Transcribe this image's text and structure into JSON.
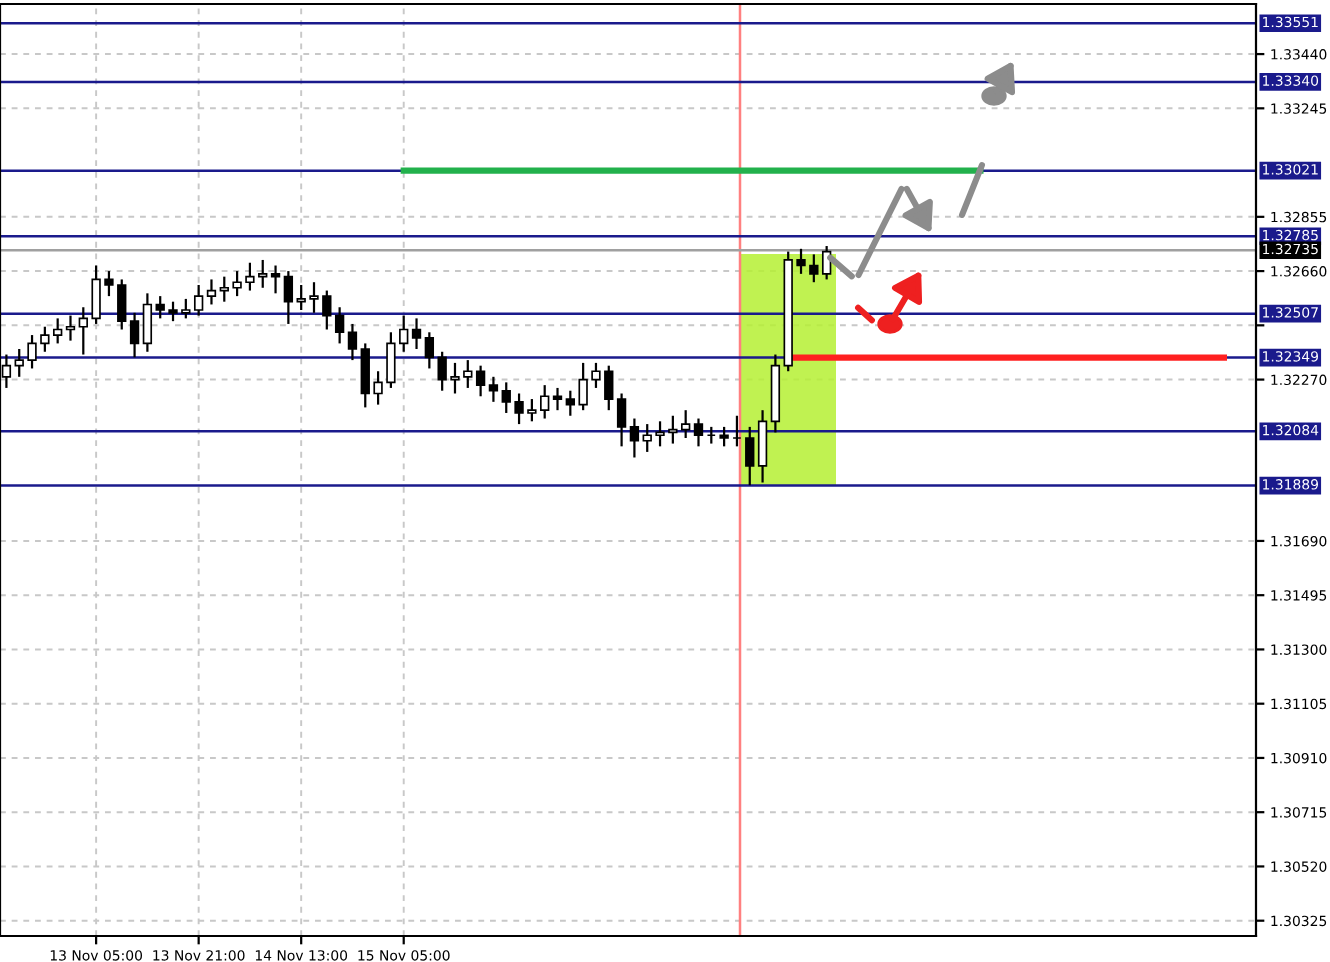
{
  "chart_data": {
    "type": "candlestick",
    "categories": [
      null,
      null,
      null,
      null,
      null,
      null,
      null,
      "13 Nov 05:00",
      null,
      null,
      null,
      null,
      null,
      null,
      null,
      "13 Nov 21:00",
      null,
      null,
      null,
      null,
      null,
      null,
      null,
      "14 Nov 13:00",
      null,
      null,
      null,
      null,
      null,
      null,
      null,
      "15 Nov 05:00",
      null,
      null,
      null,
      null,
      null,
      null,
      null,
      null,
      null,
      null,
      null,
      null,
      null,
      null,
      null,
      null,
      null,
      null,
      null,
      null,
      null,
      null,
      null,
      null,
      null,
      null,
      null,
      null,
      null,
      null,
      null,
      null,
      null,
      null,
      null,
      null,
      null,
      null,
      null,
      null,
      null,
      null,
      null,
      null,
      null,
      null,
      null,
      null,
      null,
      null,
      null,
      null,
      null,
      null,
      null,
      null,
      null,
      null,
      null,
      null,
      null,
      null,
      null,
      null,
      null,
      null
    ],
    "ohlc": [
      [
        1.3228,
        1.3236,
        1.3224,
        1.3232
      ],
      [
        1.3232,
        1.3238,
        1.3228,
        1.3234
      ],
      [
        1.3234,
        1.3243,
        1.3231,
        1.324
      ],
      [
        1.324,
        1.3246,
        1.3237,
        1.3243
      ],
      [
        1.3243,
        1.3249,
        1.324,
        1.3245
      ],
      [
        1.3245,
        1.325,
        1.3241,
        1.3246
      ],
      [
        1.3246,
        1.3253,
        1.3236,
        1.3249
      ],
      [
        1.3249,
        1.3268,
        1.3247,
        1.3263
      ],
      [
        1.3263,
        1.3266,
        1.3257,
        1.3261
      ],
      [
        1.3261,
        1.3263,
        1.3245,
        1.3248
      ],
      [
        1.3248,
        1.3251,
        1.3235,
        1.324
      ],
      [
        1.324,
        1.3258,
        1.3237,
        1.3254
      ],
      [
        1.3254,
        1.3257,
        1.3249,
        1.3252
      ],
      [
        1.3252,
        1.3255,
        1.3248,
        1.3251
      ],
      [
        1.3251,
        1.3256,
        1.3249,
        1.3252
      ],
      [
        1.3252,
        1.3261,
        1.325,
        1.3257
      ],
      [
        1.3257,
        1.3263,
        1.3254,
        1.3259
      ],
      [
        1.3259,
        1.3264,
        1.3255,
        1.326
      ],
      [
        1.326,
        1.3266,
        1.3257,
        1.3262
      ],
      [
        1.3262,
        1.3269,
        1.3259,
        1.3264
      ],
      [
        1.3264,
        1.327,
        1.326,
        1.3265
      ],
      [
        1.3265,
        1.3268,
        1.3258,
        1.3264
      ],
      [
        1.3264,
        1.3266,
        1.3247,
        1.3255
      ],
      [
        1.3255,
        1.3261,
        1.3252,
        1.3256
      ],
      [
        1.3256,
        1.3262,
        1.3251,
        1.3257
      ],
      [
        1.3257,
        1.3259,
        1.3245,
        1.325
      ],
      [
        1.325,
        1.3253,
        1.324,
        1.3244
      ],
      [
        1.3244,
        1.3247,
        1.3234,
        1.3238
      ],
      [
        1.3238,
        1.324,
        1.3217,
        1.3222
      ],
      [
        1.3222,
        1.323,
        1.3218,
        1.3226
      ],
      [
        1.3226,
        1.3244,
        1.3224,
        1.324
      ],
      [
        1.324,
        1.325,
        1.3237,
        1.3245
      ],
      [
        1.3245,
        1.3249,
        1.3238,
        1.3242
      ],
      [
        1.3242,
        1.3244,
        1.3231,
        1.3235
      ],
      [
        1.3235,
        1.3237,
        1.3223,
        1.3227
      ],
      [
        1.3227,
        1.3233,
        1.3222,
        1.3228
      ],
      [
        1.3228,
        1.3234,
        1.3224,
        1.323
      ],
      [
        1.323,
        1.3232,
        1.3221,
        1.3225
      ],
      [
        1.3225,
        1.3228,
        1.3219,
        1.3223
      ],
      [
        1.3223,
        1.3226,
        1.3215,
        1.3219
      ],
      [
        1.3219,
        1.3222,
        1.3211,
        1.3215
      ],
      [
        1.3215,
        1.322,
        1.3212,
        1.3216
      ],
      [
        1.3216,
        1.3225,
        1.3213,
        1.3221
      ],
      [
        1.3221,
        1.3224,
        1.3216,
        1.322
      ],
      [
        1.322,
        1.3223,
        1.3214,
        1.3218
      ],
      [
        1.3218,
        1.3233,
        1.3216,
        1.3227
      ],
      [
        1.3227,
        1.3233,
        1.3224,
        1.323
      ],
      [
        1.323,
        1.3232,
        1.3216,
        1.322
      ],
      [
        1.322,
        1.3222,
        1.3203,
        1.321
      ],
      [
        1.321,
        1.3213,
        1.3199,
        1.3205
      ],
      [
        1.3205,
        1.3211,
        1.3201,
        1.3207
      ],
      [
        1.3207,
        1.3212,
        1.3203,
        1.3208
      ],
      [
        1.3208,
        1.3214,
        1.3204,
        1.3209
      ],
      [
        1.3209,
        1.3216,
        1.3206,
        1.3211
      ],
      [
        1.3211,
        1.3213,
        1.3203,
        1.3207
      ],
      [
        1.3207,
        1.321,
        1.3204,
        1.3207
      ],
      [
        1.3207,
        1.321,
        1.3203,
        1.3206
      ],
      [
        1.3206,
        1.3214,
        1.3203,
        1.3206
      ],
      [
        1.3206,
        1.321,
        1.3189,
        1.3196
      ],
      [
        1.3196,
        1.3216,
        1.319,
        1.3212
      ],
      [
        1.3212,
        1.3236,
        1.3208,
        1.3232
      ],
      [
        1.3232,
        1.3273,
        1.323,
        1.327
      ],
      [
        1.327,
        1.3274,
        1.3265,
        1.3268
      ],
      [
        1.3268,
        1.3272,
        1.3262,
        1.3265
      ],
      [
        1.3265,
        1.3275,
        1.3263,
        1.3273
      ],
      null,
      null,
      null,
      null,
      null,
      null,
      null,
      null,
      null,
      null,
      null,
      null,
      null,
      null,
      null,
      null,
      null,
      null,
      null,
      null,
      null,
      null,
      null,
      null,
      null,
      null,
      null,
      null,
      null,
      null,
      null,
      null,
      null
    ],
    "series": [
      {
        "type": "line",
        "color": "#22b14c",
        "values": [
          null,
          null,
          null,
          null,
          null,
          null,
          null,
          null,
          null,
          null,
          null,
          null,
          null,
          null,
          null,
          null,
          null,
          null,
          null,
          null,
          null,
          null,
          null,
          null,
          null,
          null,
          null,
          null,
          null,
          null,
          null,
          1.33021,
          1.33021,
          1.33021,
          1.33021,
          1.33021,
          1.33021,
          1.33021,
          1.33021,
          1.33021,
          1.33021,
          1.33021,
          1.33021,
          1.33021,
          1.33021,
          1.33021,
          1.33021,
          1.33021,
          1.33021,
          1.33021,
          1.33021,
          1.33021,
          1.33021,
          1.33021,
          1.33021,
          1.33021,
          1.33021,
          1.33021,
          1.33021,
          1.33021,
          1.33021,
          1.33021,
          1.33021,
          1.33021,
          1.33021,
          1.33021,
          1.33021,
          1.33021,
          1.33021,
          1.33021,
          1.33021,
          1.33021,
          1.33021,
          1.33021,
          1.33021,
          1.33021,
          1.33021,
          null,
          null,
          null,
          null,
          null,
          null,
          null,
          null,
          null,
          null,
          null,
          null,
          null,
          null,
          null,
          null,
          null,
          null,
          null,
          null,
          null
        ]
      },
      {
        "type": "line",
        "color": "#ff2020",
        "values": [
          null,
          null,
          null,
          null,
          null,
          null,
          null,
          null,
          null,
          null,
          null,
          null,
          null,
          null,
          null,
          null,
          null,
          null,
          null,
          null,
          null,
          null,
          null,
          null,
          null,
          null,
          null,
          null,
          null,
          null,
          null,
          null,
          null,
          null,
          null,
          null,
          null,
          null,
          null,
          null,
          null,
          null,
          null,
          null,
          null,
          null,
          null,
          null,
          null,
          null,
          null,
          null,
          null,
          null,
          null,
          null,
          null,
          null,
          null,
          null,
          null,
          1.32349,
          1.32349,
          1.32349,
          1.32349,
          1.32349,
          1.32349,
          1.32349,
          1.32349,
          1.32349,
          1.32349,
          1.32349,
          1.32349,
          1.32349,
          1.32349,
          1.32349,
          1.32349,
          1.32349,
          1.32349,
          1.32349,
          1.32349,
          1.32349,
          1.32349,
          1.32349,
          1.32349,
          1.32349,
          1.32349,
          1.32349,
          1.32349,
          1.32349,
          1.32349,
          1.32349,
          1.32349,
          1.32349,
          1.32349,
          1.32349,
          null,
          null
        ]
      }
    ],
    "ylim": [
      1.3027,
      1.3362
    ],
    "yticks": [
      {
        "value": 1.3344,
        "label": "1.33440"
      },
      {
        "value": 1.33245,
        "label": "1.33245"
      },
      {
        "value": 1.32855,
        "label": "1.32855"
      },
      {
        "value": 1.3266,
        "label": "1.32660"
      },
      {
        "value": 1.32465,
        "label": null
      },
      {
        "value": 1.3227,
        "label": "1.32270"
      },
      {
        "value": 1.3169,
        "label": "1.31690"
      },
      {
        "value": 1.31495,
        "label": "1.31495"
      },
      {
        "value": 1.313,
        "label": "1.31300"
      },
      {
        "value": 1.31105,
        "label": "1.31105"
      },
      {
        "value": 1.3091,
        "label": "1.30910"
      },
      {
        "value": 1.30715,
        "label": "1.30715"
      },
      {
        "value": 1.3052,
        "label": "1.30520"
      },
      {
        "value": 1.30325,
        "label": "1.30325"
      }
    ],
    "ref_lines": [
      {
        "axis": "y",
        "value": 1.33551,
        "label": "1.33551",
        "color": "#1a1a8c"
      },
      {
        "axis": "y",
        "value": 1.3334,
        "label": "1.33340",
        "color": "#1a1a8c"
      },
      {
        "axis": "y",
        "value": 1.33021,
        "label": "1.33021",
        "color": "#1a1a8c"
      },
      {
        "axis": "y",
        "value": 1.32785,
        "label": "1.32785",
        "color": "#1a1a8c"
      },
      {
        "axis": "y",
        "value": 1.32735,
        "label": "1.32735",
        "color": "#a0a0a0"
      },
      {
        "axis": "y",
        "value": 1.32507,
        "label": "1.32507",
        "color": "#1a1a8c"
      },
      {
        "axis": "y",
        "value": 1.32349,
        "label": "1.32349",
        "color": "#1a1a8c"
      },
      {
        "axis": "y",
        "value": 1.32084,
        "label": "1.32084",
        "color": "#1a1a8c"
      },
      {
        "axis": "y",
        "value": 1.31889,
        "label": "1.31889",
        "color": "#1a1a8c"
      }
    ],
    "grid": true
  }
}
